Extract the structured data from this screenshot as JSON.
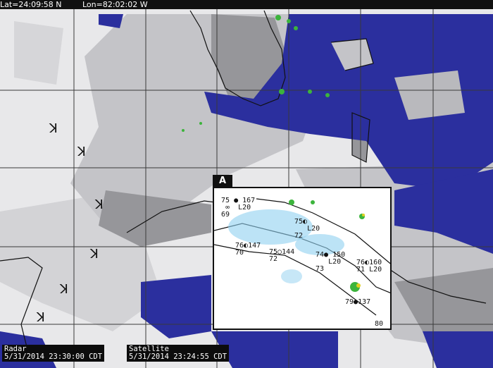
{
  "header": {
    "lat": "Lat=24:09:58 N",
    "lon": "Lon=82:02:02 W"
  },
  "stamps": {
    "radar": {
      "label": "Radar",
      "time": "5/31/2014 23:30:00 CDT"
    },
    "satellite": {
      "label": "Satellite",
      "time": "5/31/2014 23:24:55 CDT"
    }
  },
  "inset": {
    "label": "A",
    "stations": [
      {
        "temp": "75",
        "pressure": "167",
        "dew": "69",
        "extra": "L20",
        "vis": "∞"
      },
      {
        "temp": "75",
        "pressure": "",
        "dew": "72",
        "extra": "L20",
        "vis": ""
      },
      {
        "temp": "76",
        "pressure": "147",
        "dew": "70",
        "extra": "",
        "vis": ""
      },
      {
        "temp": "75",
        "pressure": "144",
        "dew": "72",
        "extra": "",
        "vis": ""
      },
      {
        "temp": "74",
        "pressure": "150",
        "dew": "73",
        "extra": "L20",
        "vis": ""
      },
      {
        "temp": "76",
        "pressure": "160",
        "dew": "71",
        "extra": "L20",
        "vis": ""
      },
      {
        "temp": "79",
        "pressure": "137",
        "dew": "",
        "extra": "",
        "vis": ""
      },
      {
        "temp": "80",
        "pressure": "",
        "dew": "",
        "extra": "",
        "vis": ""
      }
    ]
  },
  "colors": {
    "cloud_light": "#f2f2f4",
    "cloud_mid": "#b9b9bd",
    "cloud_dark": "#8e8e92",
    "water_clear": "#2b2f9e",
    "radar_green": "#3cb43c",
    "radar_light_blue": "#8fd0f0",
    "grid": "#3a3a3a"
  },
  "wind_symbol": "ꓘ"
}
